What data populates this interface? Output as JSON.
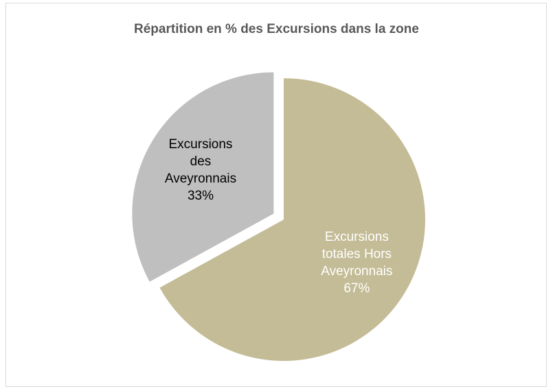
{
  "chart_data": {
    "type": "pie",
    "title": "Répartition en % des Excursions dans la zone",
    "categories": [
      "Excursions totales Hors Aveyronnais",
      "Excursions des Aveyronnais"
    ],
    "values": [
      67,
      33
    ],
    "value_labels": [
      "67%",
      "33%"
    ],
    "colors": [
      "#c4bc96",
      "#bfbfbf"
    ],
    "exploded": [
      false,
      true
    ]
  }
}
